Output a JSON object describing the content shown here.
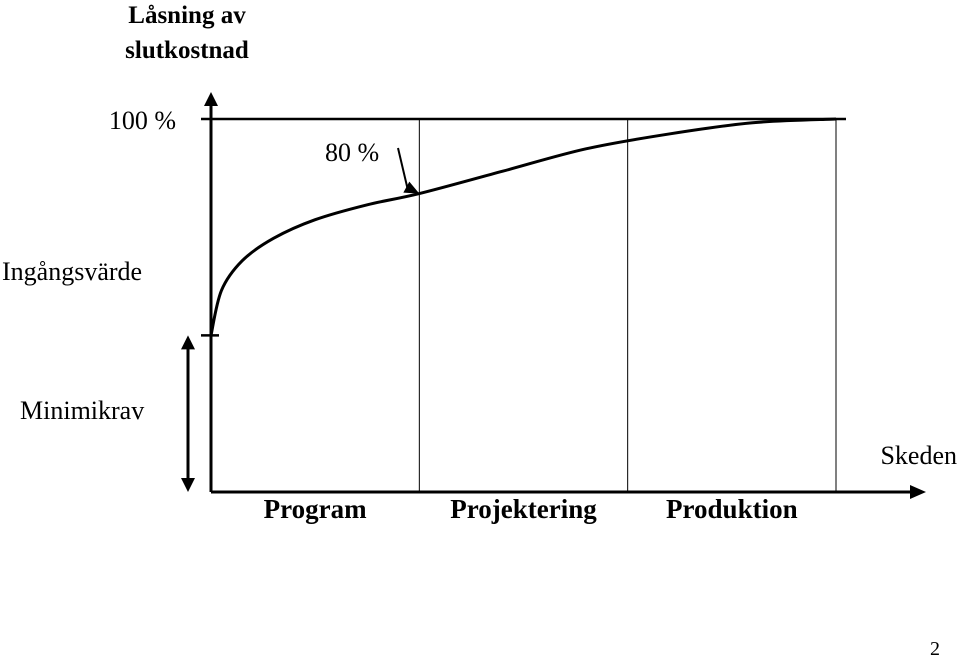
{
  "chart_data": {
    "type": "line",
    "title": "Låsning av slutkostnad",
    "xlabel": "Skeden",
    "ylabel": "",
    "categories": [
      "Program",
      "Projektering",
      "Produktion"
    ],
    "ylim": [
      0,
      100
    ],
    "y_ticks": [
      {
        "label": "100 %",
        "value": 100
      },
      {
        "label": "Ingångsvärde",
        "value": 42
      }
    ],
    "range_marker": {
      "label": "Minimikrav",
      "from": 0,
      "to": 42
    },
    "annotation": {
      "label": "80 %",
      "x": 1,
      "y": 80
    },
    "gridlines_at_phase_boundaries": true,
    "series": [
      {
        "x": [
          0,
          0.05,
          0.15,
          0.3,
          0.5,
          0.75,
          1.0,
          1.4,
          1.8,
          2.2,
          2.6,
          3.0
        ],
        "y": [
          42,
          54,
          62,
          68,
          73,
          77,
          80,
          86,
          92,
          96,
          99,
          100
        ]
      }
    ],
    "colors": {
      "line": "#000000",
      "background": "#ffffff"
    }
  },
  "page_number": "2"
}
